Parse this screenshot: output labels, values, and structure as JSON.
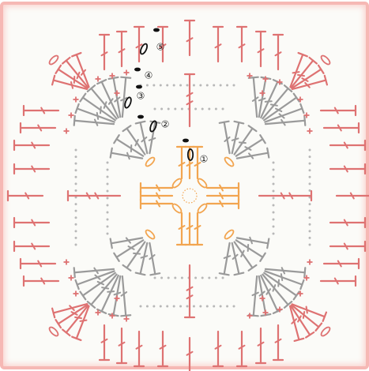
{
  "diagram": {
    "type": "crochet-granny-square-chart",
    "round_labels": [
      "①",
      "②",
      "③",
      "④",
      "⑤"
    ],
    "colors": {
      "round1": "#f2a550",
      "round2_3": "#9a9a9a",
      "round4_5": "#de7272",
      "start_marks": "#111111",
      "slip_stitch_dots": "#b8b8b8",
      "background": "#fbfbf8",
      "border": "#f6b8b4"
    }
  }
}
